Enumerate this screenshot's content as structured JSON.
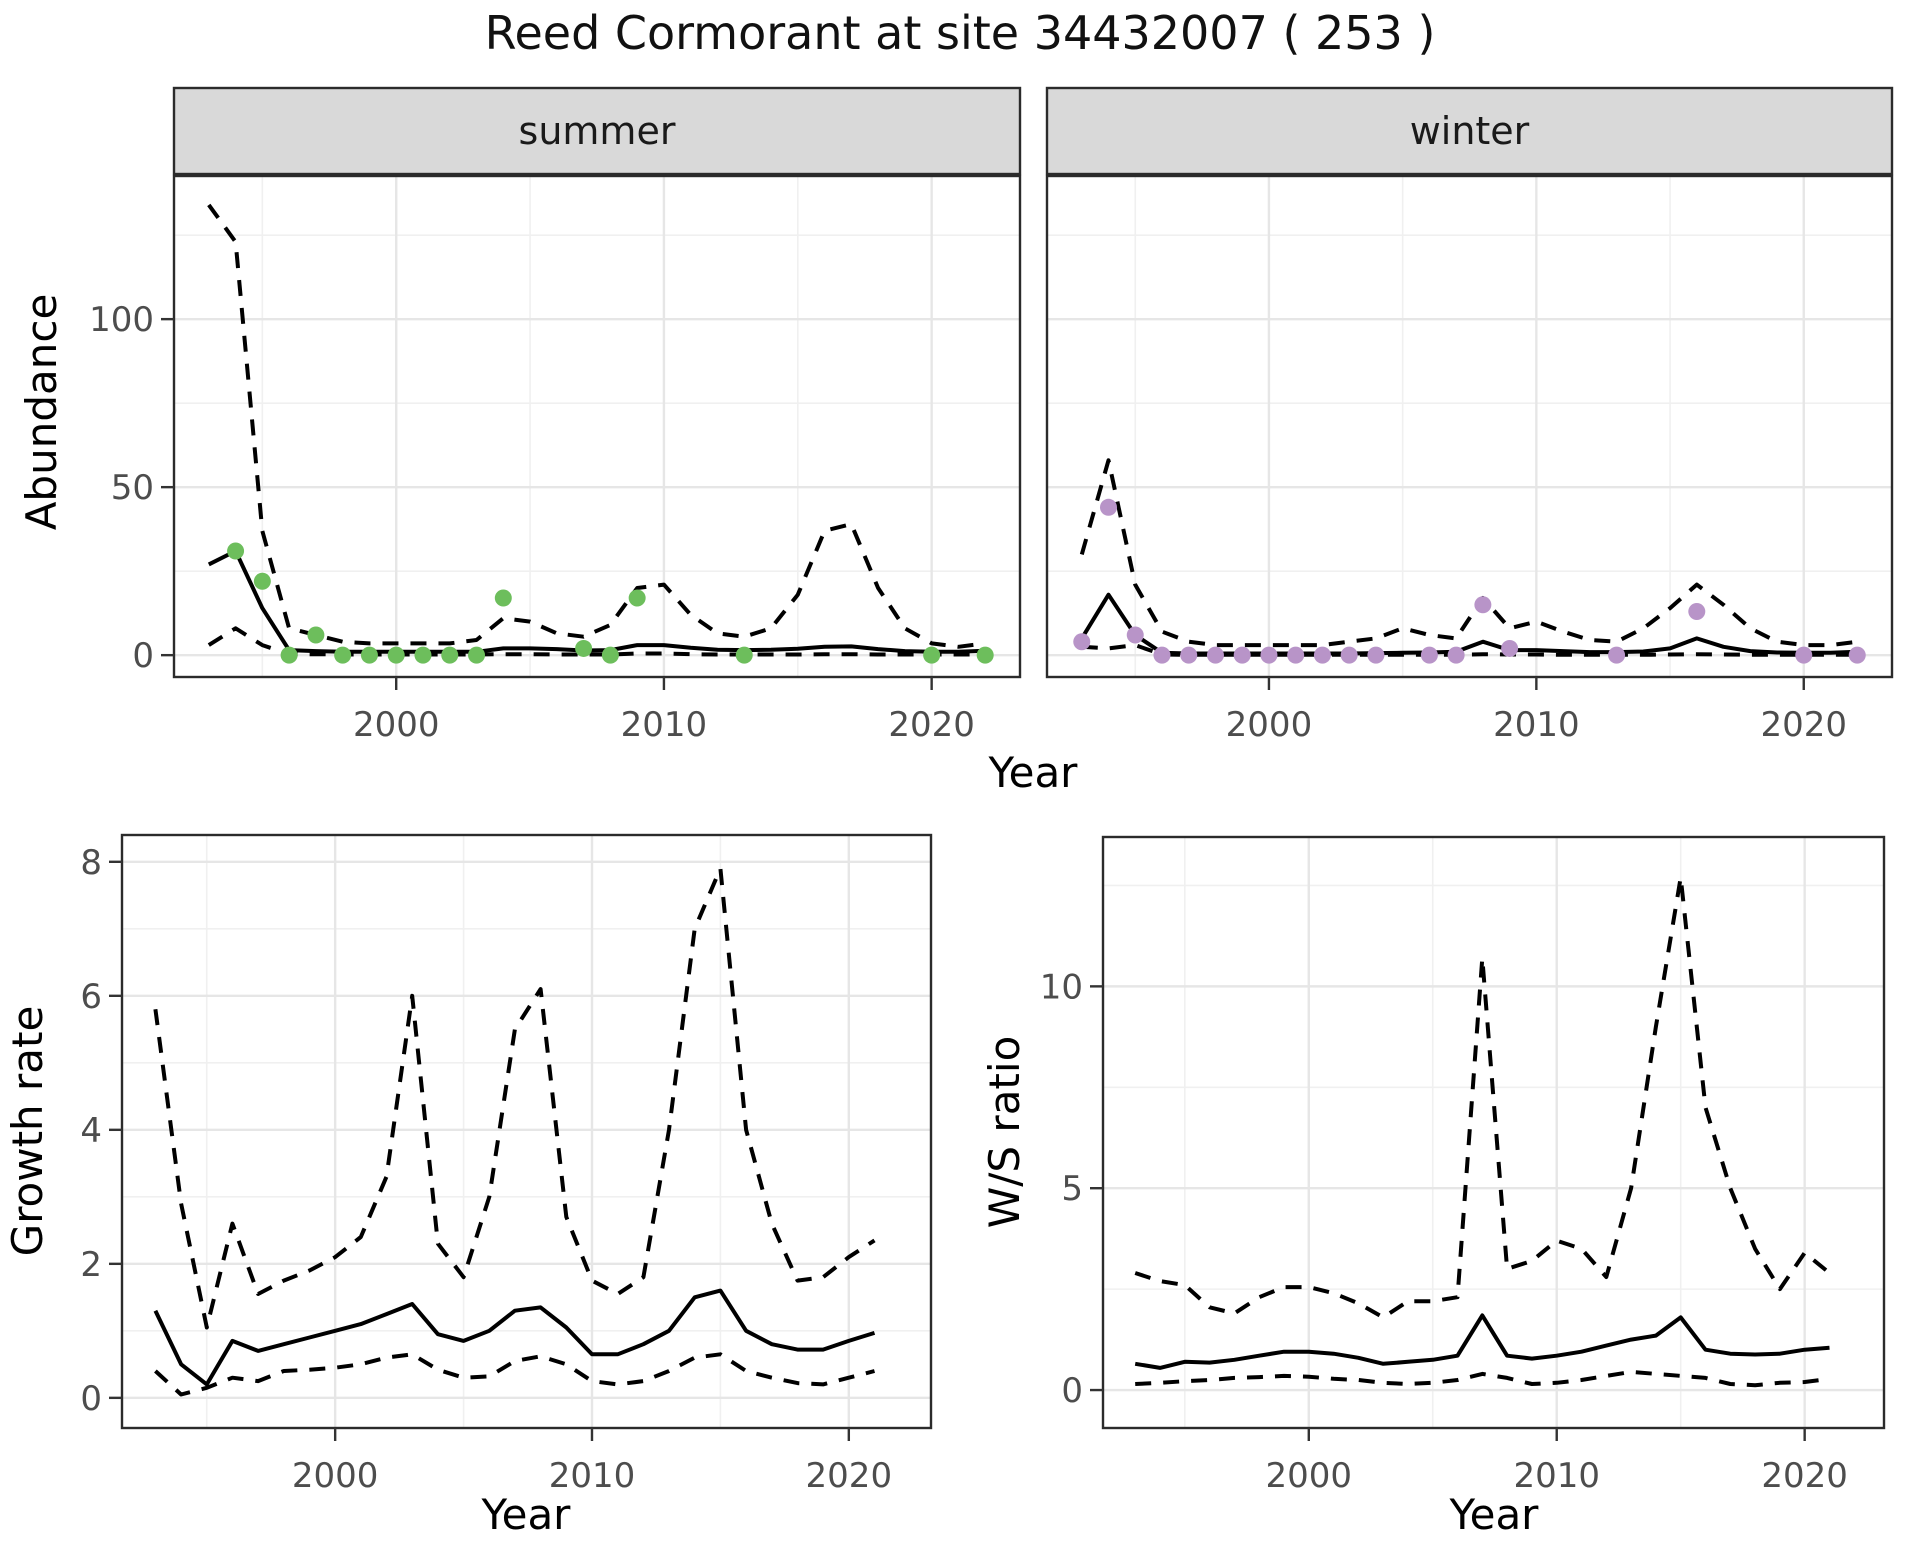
{
  "figure": {
    "title": "Reed Cormorant at site 34432007 ( 253 )",
    "background": "#ffffff"
  },
  "facets": [
    {
      "label": "summer"
    },
    {
      "label": "winter"
    }
  ],
  "axes": {
    "abundance": "Abundance",
    "year": "Year",
    "growth_rate": "Growth rate",
    "ws_ratio": "W/S ratio"
  },
  "style_colors": {
    "summer_point": "#6dbe5c",
    "winter_point": "#b894c8",
    "line": "#000000",
    "grid_major": "#e6e6e6",
    "grid_minor": "#f0f0f0",
    "strip_fill": "#d9d9d9",
    "panel_border": "#2b2b2b",
    "tick_text": "#4d4d4d"
  },
  "chart_data": [
    {
      "id": "abundance-summer",
      "type": "line",
      "facet": "summer",
      "ylabel": "Abundance",
      "xlabel": "Year",
      "x": [
        1993,
        1994,
        1995,
        1996,
        1997,
        1998,
        1999,
        2000,
        2001,
        2002,
        2003,
        2004,
        2005,
        2006,
        2007,
        2008,
        2009,
        2010,
        2011,
        2012,
        2013,
        2014,
        2015,
        2016,
        2017,
        2018,
        2019,
        2020,
        2021,
        2022
      ],
      "series": [
        {
          "name": "upper_ci",
          "style": "dashed",
          "values": [
            134,
            123,
            37,
            8,
            6,
            4,
            3.5,
            3.5,
            3.5,
            3.5,
            4.5,
            11,
            10,
            6.5,
            5.5,
            9,
            20,
            21,
            12,
            6.5,
            5.5,
            8,
            18,
            37,
            39,
            20,
            8,
            3.5,
            2.5,
            3.5
          ]
        },
        {
          "name": "lower_ci",
          "style": "dashed",
          "values": [
            3,
            8,
            3,
            0.3,
            0.3,
            0.2,
            0.2,
            0.2,
            0.2,
            0.2,
            0.2,
            0.3,
            0.3,
            0.2,
            0.2,
            0.2,
            0.5,
            0.5,
            0.3,
            0.2,
            0.2,
            0.2,
            0.2,
            0.3,
            0.3,
            0.2,
            0.2,
            0.2,
            0.2,
            0.2
          ]
        },
        {
          "name": "mean",
          "style": "solid",
          "values": [
            27,
            31,
            14,
            1.5,
            1.2,
            1,
            1,
            1,
            1,
            1,
            1,
            2,
            2,
            1.8,
            1.4,
            1.5,
            3,
            3,
            2.2,
            1.6,
            1.5,
            1.6,
            1.9,
            2.5,
            2.6,
            1.8,
            1.2,
            1,
            1,
            1.3
          ]
        }
      ],
      "points": {
        "color": "#6dbe5c",
        "data": [
          [
            1994,
            31
          ],
          [
            1995,
            22
          ],
          [
            1996,
            0
          ],
          [
            1997,
            6
          ],
          [
            1998,
            0
          ],
          [
            1999,
            0
          ],
          [
            2000,
            0
          ],
          [
            2001,
            0
          ],
          [
            2002,
            0
          ],
          [
            2003,
            0
          ],
          [
            2004,
            17
          ],
          [
            2007,
            2
          ],
          [
            2008,
            0
          ],
          [
            2009,
            17
          ],
          [
            2013,
            0
          ],
          [
            2020,
            0
          ],
          [
            2022,
            0
          ]
        ]
      },
      "x_ticks": [
        2000,
        2010,
        2020
      ],
      "x_minor": [
        1995,
        2005,
        2015
      ],
      "y_ticks": [
        0,
        50,
        100
      ],
      "y_minor": [
        25,
        75,
        125
      ],
      "xlim": [
        1991.7,
        2023.3
      ],
      "ylim": [
        -6.5,
        142.6
      ]
    },
    {
      "id": "abundance-winter",
      "type": "line",
      "facet": "winter",
      "ylabel": "Abundance",
      "xlabel": "Year",
      "x": [
        1993,
        1994,
        1995,
        1996,
        1997,
        1998,
        1999,
        2000,
        2001,
        2002,
        2003,
        2004,
        2005,
        2006,
        2007,
        2008,
        2009,
        2010,
        2011,
        2012,
        2013,
        2014,
        2015,
        2016,
        2017,
        2018,
        2019,
        2020,
        2021,
        2022
      ],
      "series": [
        {
          "name": "upper_ci",
          "style": "dashed",
          "values": [
            30,
            58,
            21,
            7,
            4,
            3,
            3,
            3,
            3,
            3,
            4,
            5,
            8,
            6,
            5,
            17,
            8,
            10,
            7,
            4.5,
            4,
            8,
            14,
            21,
            15,
            8,
            4,
            3,
            3,
            4
          ]
        },
        {
          "name": "lower_ci",
          "style": "dashed",
          "values": [
            2.5,
            2,
            3,
            0.2,
            0.1,
            0.1,
            0.1,
            0.1,
            0.1,
            0.1,
            0.1,
            0.1,
            0.1,
            0.1,
            0.1,
            0.3,
            0.2,
            0.2,
            0.1,
            0.1,
            0.1,
            0.1,
            0.2,
            0.3,
            0.2,
            0.1,
            0.1,
            0.1,
            0.1,
            0.1
          ]
        },
        {
          "name": "mean",
          "style": "solid",
          "values": [
            5,
            18,
            6,
            0.7,
            0.5,
            0.5,
            0.5,
            0.5,
            0.5,
            0.5,
            0.5,
            0.6,
            0.7,
            0.8,
            1,
            4,
            1.5,
            1.5,
            1.2,
            0.9,
            0.9,
            1.1,
            2,
            5,
            2.5,
            1.2,
            0.8,
            0.7,
            0.7,
            1
          ]
        }
      ],
      "points": {
        "color": "#b894c8",
        "data": [
          [
            1993,
            4
          ],
          [
            1994,
            44
          ],
          [
            1995,
            6
          ],
          [
            1996,
            0
          ],
          [
            1997,
            0
          ],
          [
            1998,
            0
          ],
          [
            1999,
            0
          ],
          [
            2000,
            0
          ],
          [
            2001,
            0
          ],
          [
            2002,
            0
          ],
          [
            2003,
            0
          ],
          [
            2004,
            0
          ],
          [
            2006,
            0
          ],
          [
            2007,
            0
          ],
          [
            2008,
            15
          ],
          [
            2009,
            2
          ],
          [
            2013,
            0
          ],
          [
            2016,
            13
          ],
          [
            2020,
            0
          ],
          [
            2022,
            0
          ]
        ]
      },
      "x_ticks": [
        2000,
        2010,
        2020
      ],
      "x_minor": [
        1995,
        2005,
        2015
      ],
      "y_ticks": [
        0,
        50,
        100
      ],
      "y_minor": [
        25,
        75,
        125
      ],
      "xlim": [
        1991.7,
        2023.3
      ],
      "ylim": [
        -6.5,
        142.6
      ]
    },
    {
      "id": "growth-rate",
      "type": "line",
      "facet": null,
      "ylabel": "Growth rate",
      "xlabel": "Year",
      "x": [
        1993,
        1994,
        1995,
        1996,
        1997,
        1998,
        1999,
        2000,
        2001,
        2002,
        2003,
        2004,
        2005,
        2006,
        2007,
        2008,
        2009,
        2010,
        2011,
        2012,
        2013,
        2014,
        2015,
        2016,
        2017,
        2018,
        2019,
        2020,
        2021
      ],
      "series": [
        {
          "name": "upper_ci",
          "style": "dashed",
          "values": [
            5.8,
            2.9,
            1.05,
            2.6,
            1.55,
            1.75,
            1.9,
            2.1,
            2.4,
            3.3,
            6.0,
            2.3,
            1.8,
            3.0,
            5.5,
            6.1,
            2.7,
            1.75,
            1.55,
            1.8,
            4.0,
            7.0,
            7.9,
            4.0,
            2.6,
            1.75,
            1.8,
            2.1,
            2.35
          ]
        },
        {
          "name": "lower_ci",
          "style": "dashed",
          "values": [
            0.4,
            0.05,
            0.15,
            0.3,
            0.25,
            0.4,
            0.42,
            0.45,
            0.5,
            0.6,
            0.65,
            0.42,
            0.3,
            0.32,
            0.55,
            0.62,
            0.5,
            0.25,
            0.2,
            0.25,
            0.4,
            0.6,
            0.65,
            0.4,
            0.3,
            0.22,
            0.2,
            0.3,
            0.4
          ]
        },
        {
          "name": "mean",
          "style": "solid",
          "values": [
            1.3,
            0.5,
            0.2,
            0.85,
            0.7,
            0.8,
            0.9,
            1.0,
            1.1,
            1.25,
            1.4,
            0.95,
            0.85,
            1.0,
            1.3,
            1.35,
            1.05,
            0.65,
            0.65,
            0.8,
            1.0,
            1.5,
            1.6,
            1.0,
            0.8,
            0.72,
            0.72,
            0.85,
            0.97
          ]
        }
      ],
      "points": null,
      "x_ticks": [
        2000,
        2010,
        2020
      ],
      "x_minor": [
        1995,
        2005,
        2015
      ],
      "y_ticks": [
        0,
        2,
        4,
        6,
        8
      ],
      "y_minor": [
        1,
        3,
        5,
        7
      ],
      "xlim": [
        1991.7,
        2023.2
      ],
      "ylim": [
        -0.45,
        8.4
      ]
    },
    {
      "id": "ws-ratio",
      "type": "line",
      "facet": null,
      "ylabel": "W/S ratio",
      "xlabel": "Year",
      "x": [
        1993,
        1994,
        1995,
        1996,
        1997,
        1998,
        1999,
        2000,
        2001,
        2002,
        2003,
        2004,
        2005,
        2006,
        2007,
        2008,
        2009,
        2010,
        2011,
        2012,
        2013,
        2014,
        2015,
        2016,
        2017,
        2018,
        2019,
        2020,
        2021
      ],
      "series": [
        {
          "name": "upper_ci",
          "style": "dashed",
          "values": [
            2.9,
            2.7,
            2.6,
            2.05,
            1.9,
            2.3,
            2.55,
            2.55,
            2.4,
            2.15,
            1.8,
            2.2,
            2.2,
            2.3,
            10.7,
            3.0,
            3.2,
            3.7,
            3.5,
            2.8,
            5.0,
            9.0,
            12.7,
            7.0,
            5.0,
            3.5,
            2.5,
            3.4,
            2.9
          ]
        },
        {
          "name": "lower_ci",
          "style": "dashed",
          "values": [
            0.15,
            0.18,
            0.22,
            0.25,
            0.3,
            0.32,
            0.35,
            0.33,
            0.28,
            0.25,
            0.18,
            0.15,
            0.18,
            0.25,
            0.4,
            0.3,
            0.15,
            0.18,
            0.25,
            0.35,
            0.45,
            0.4,
            0.35,
            0.3,
            0.15,
            0.12,
            0.18,
            0.2,
            0.28
          ]
        },
        {
          "name": "mean",
          "style": "solid",
          "values": [
            0.65,
            0.55,
            0.7,
            0.68,
            0.75,
            0.85,
            0.95,
            0.95,
            0.9,
            0.8,
            0.65,
            0.7,
            0.75,
            0.85,
            1.85,
            0.85,
            0.78,
            0.85,
            0.95,
            1.1,
            1.25,
            1.35,
            1.8,
            1.0,
            0.9,
            0.88,
            0.9,
            1.0,
            1.05
          ]
        }
      ],
      "points": null,
      "x_ticks": [
        2000,
        2010,
        2020
      ],
      "x_minor": [
        1995,
        2005,
        2015
      ],
      "y_ticks": [
        0,
        5,
        10
      ],
      "y_minor": [
        2.5,
        7.5,
        12.5
      ],
      "xlim": [
        1991.7,
        2023.2
      ],
      "ylim": [
        -0.94,
        13.7
      ]
    }
  ]
}
